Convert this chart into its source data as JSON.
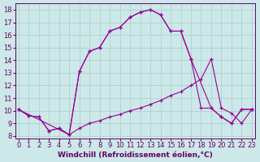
{
  "xlabel": "Windchill (Refroidissement éolien,°C)",
  "background_color": "#cce8e8",
  "grid_color": "#aacccc",
  "line_color": "#990099",
  "xlim": [
    0,
    23
  ],
  "ylim": [
    8,
    18
  ],
  "xticks": [
    0,
    1,
    2,
    3,
    4,
    5,
    6,
    7,
    8,
    9,
    10,
    11,
    12,
    13,
    14,
    15,
    16,
    17,
    18,
    19,
    20,
    21,
    22,
    23
  ],
  "yticks": [
    8,
    9,
    10,
    11,
    12,
    13,
    14,
    15,
    16,
    17,
    18
  ],
  "line1_x": [
    0,
    1,
    2,
    3,
    4,
    5,
    6,
    7,
    8,
    9,
    10,
    11,
    12,
    13,
    14,
    15,
    16,
    17,
    18,
    19,
    20,
    21,
    22,
    23
  ],
  "line1_y": [
    10.1,
    9.6,
    9.5,
    8.4,
    8.6,
    8.1,
    8.6,
    9.0,
    9.2,
    9.5,
    9.7,
    10.0,
    10.2,
    10.5,
    10.8,
    11.2,
    11.5,
    12.0,
    12.5,
    14.1,
    10.2,
    9.8,
    9.0,
    10.1
  ],
  "line2_x": [
    0,
    5,
    6,
    7,
    8,
    9,
    10,
    11,
    12,
    13,
    14,
    15,
    16,
    17,
    19,
    20,
    21,
    22,
    23
  ],
  "line2_y": [
    10.1,
    8.1,
    13.1,
    14.7,
    15.0,
    16.3,
    16.6,
    17.4,
    17.8,
    18.0,
    17.6,
    16.3,
    16.3,
    14.1,
    10.2,
    9.5,
    9.0,
    10.1,
    10.1
  ],
  "line3_x": [
    0,
    1,
    2,
    3,
    4,
    5,
    6,
    7,
    8,
    9,
    10,
    11,
    12,
    13,
    14,
    15,
    16,
    17,
    18,
    19,
    20,
    21,
    22,
    23
  ],
  "line3_y": [
    10.1,
    9.6,
    9.5,
    8.4,
    8.6,
    8.1,
    13.1,
    14.7,
    15.0,
    16.3,
    16.6,
    17.4,
    17.8,
    18.0,
    17.6,
    16.3,
    16.3,
    14.1,
    10.2,
    10.2,
    9.5,
    9.0,
    10.1,
    10.1
  ],
  "tick_fontsize": 6,
  "label_fontsize": 6.5
}
